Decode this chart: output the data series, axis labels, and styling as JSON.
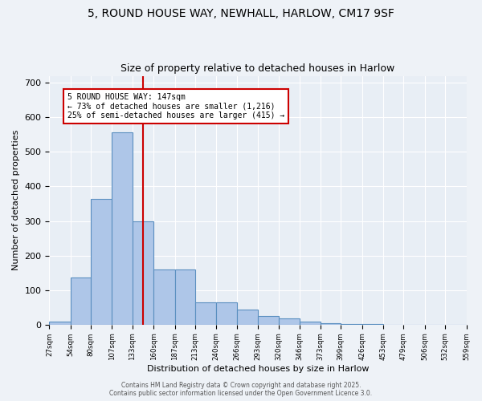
{
  "title_line1": "5, ROUND HOUSE WAY, NEWHALL, HARLOW, CM17 9SF",
  "title_line2": "Size of property relative to detached houses in Harlow",
  "xlabel": "Distribution of detached houses by size in Harlow",
  "ylabel": "Number of detached properties",
  "bar_edges": [
    27,
    54,
    80,
    107,
    133,
    160,
    187,
    213,
    240,
    266,
    293,
    320,
    346,
    373,
    399,
    426,
    453,
    479,
    506,
    532,
    559
  ],
  "bar_heights": [
    10,
    137,
    363,
    557,
    298,
    160,
    160,
    65,
    65,
    43,
    25,
    18,
    10,
    5,
    2,
    1,
    0,
    0,
    0,
    0
  ],
  "bar_color": "#aec6e8",
  "bar_edge_color": "#5a8fc0",
  "bar_edge_width": 0.8,
  "red_line_x": 147,
  "red_line_color": "#cc0000",
  "annotation_text": "5 ROUND HOUSE WAY: 147sqm\n← 73% of detached houses are smaller (1,216)\n25% of semi-detached houses are larger (415) →",
  "annotation_box_color": "#cc0000",
  "ylim": [
    0,
    720
  ],
  "yticks": [
    0,
    100,
    200,
    300,
    400,
    500,
    600,
    700
  ],
  "bg_color": "#e8eef5",
  "fig_bg_color": "#eef2f7",
  "footer_line1": "Contains HM Land Registry data © Crown copyright and database right 2025.",
  "footer_line2": "Contains public sector information licensed under the Open Government Licence 3.0.",
  "grid_color": "#ffffff",
  "tick_labels": [
    "27sqm",
    "54sqm",
    "80sqm",
    "107sqm",
    "133sqm",
    "160sqm",
    "187sqm",
    "213sqm",
    "240sqm",
    "266sqm",
    "293sqm",
    "320sqm",
    "346sqm",
    "373sqm",
    "399sqm",
    "426sqm",
    "453sqm",
    "479sqm",
    "506sqm",
    "532sqm",
    "559sqm"
  ]
}
